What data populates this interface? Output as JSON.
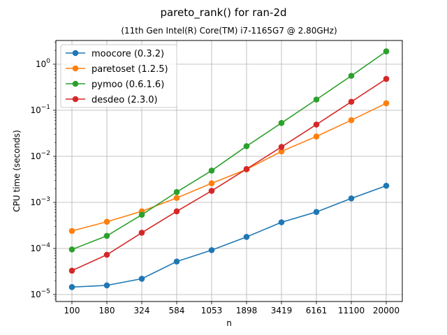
{
  "chart_data": {
    "type": "line",
    "title": "pareto_rank() for ran-2d",
    "subtitle": "(11th Gen Intel(R) Core(TM) i7-1165G7 @ 2.80GHz)",
    "xlabel": "n",
    "ylabel": "CPU time (seconds)",
    "x": [
      "100",
      "180",
      "324",
      "584",
      "1053",
      "1898",
      "3419",
      "6161",
      "11100",
      "20000"
    ],
    "y_scale": "log",
    "ylim": [
      1e-05,
      1
    ],
    "y_ticks": [
      {
        "base": "10",
        "exp": "−5"
      },
      {
        "base": "10",
        "exp": "−4"
      },
      {
        "base": "10",
        "exp": "−3"
      },
      {
        "base": "10",
        "exp": "−2"
      },
      {
        "base": "10",
        "exp": "−1"
      },
      {
        "base": "10",
        "exp": "0"
      }
    ],
    "grid": true,
    "legend_position": "top-left",
    "series": [
      {
        "name": "moocore (0.3.2)",
        "color": "#1f77b4",
        "values": [
          1.45e-05,
          1.58e-05,
          2.2e-05,
          5.2e-05,
          9.2e-05,
          0.000178,
          0.00037,
          0.00062,
          0.00122,
          0.0023
        ]
      },
      {
        "name": "paretoset (1.2.5)",
        "color": "#ff7f0e",
        "values": [
          0.00024,
          0.00038,
          0.00064,
          0.00125,
          0.0026,
          0.0052,
          0.0128,
          0.027,
          0.061,
          0.142
        ]
      },
      {
        "name": "pymoo (0.6.1.6)",
        "color": "#2ca02c",
        "values": [
          9.5e-05,
          0.000188,
          0.00054,
          0.00168,
          0.0049,
          0.0166,
          0.053,
          0.171,
          0.56,
          1.9
        ]
      },
      {
        "name": "desdeo (2.3.0)",
        "color": "#d62728",
        "values": [
          3.3e-05,
          7.3e-05,
          0.00022,
          0.00064,
          0.00178,
          0.0053,
          0.016,
          0.049,
          0.153,
          0.48
        ]
      }
    ]
  }
}
